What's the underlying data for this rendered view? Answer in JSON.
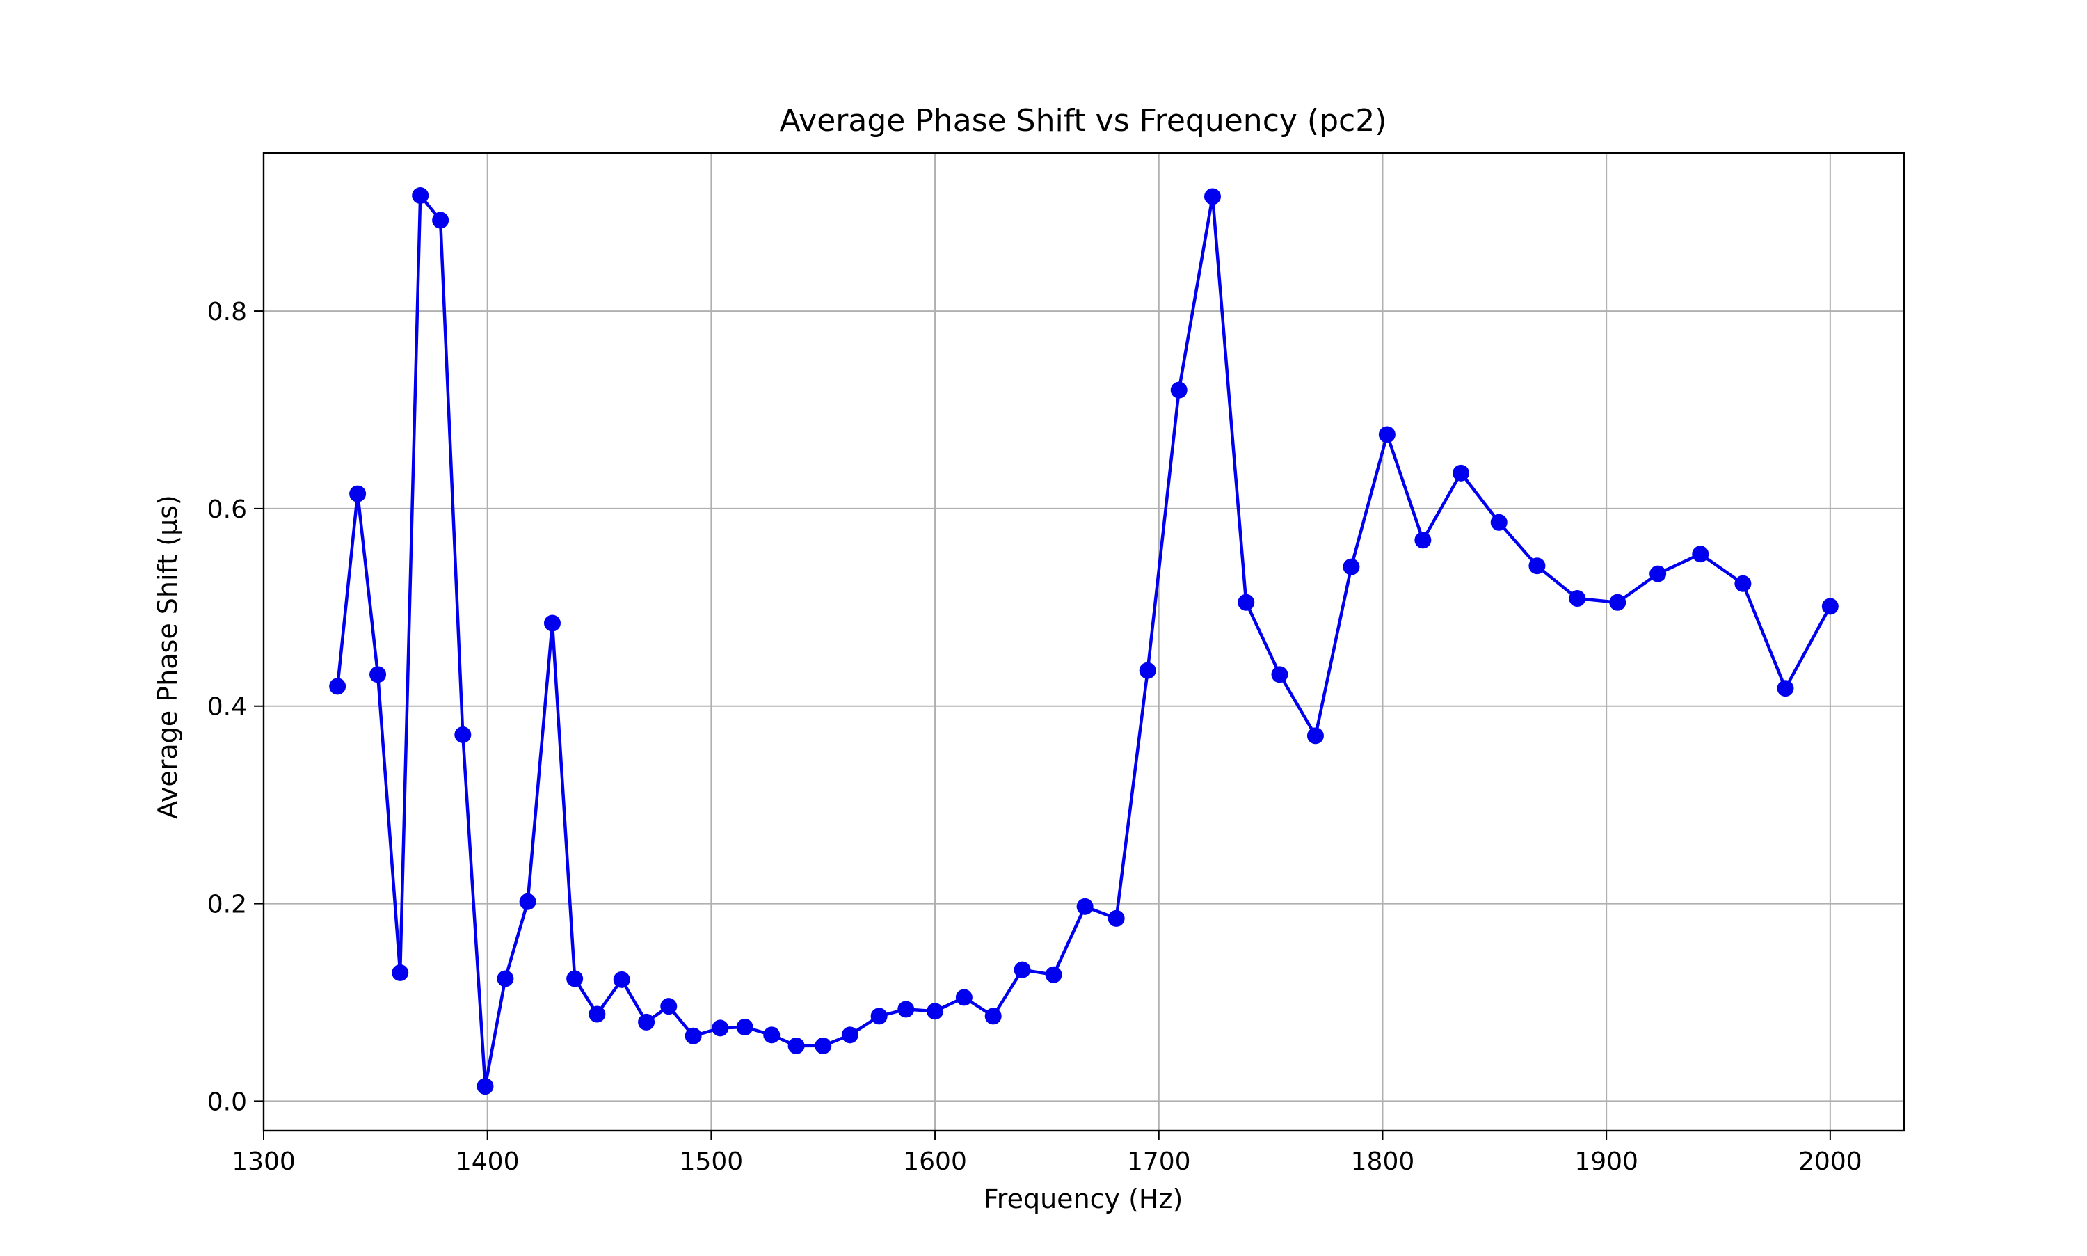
{
  "chart_data": {
    "type": "line",
    "title": "Average Phase Shift vs Frequency (pc2)",
    "xlabel": "Frequency (Hz)",
    "ylabel": "Average Phase Shift (µs)",
    "xlim": [
      1300,
      2033
    ],
    "ylim": [
      -0.03,
      0.96
    ],
    "xticks": [
      1300,
      1400,
      1500,
      1600,
      1700,
      1800,
      1900,
      2000
    ],
    "xtick_labels": [
      "1300",
      "1400",
      "1500",
      "1600",
      "1700",
      "1800",
      "1900",
      "2000"
    ],
    "yticks": [
      0.0,
      0.2,
      0.4,
      0.6,
      0.8
    ],
    "ytick_labels": [
      "0.0",
      "0.2",
      "0.4",
      "0.6",
      "0.8"
    ],
    "grid": true,
    "line_color": "#0000ee",
    "series": [
      {
        "x": [
          1333,
          1342,
          1351,
          1361,
          1370,
          1379,
          1389,
          1399,
          1408,
          1418,
          1429,
          1439,
          1449,
          1460,
          1471,
          1481,
          1492,
          1504,
          1515,
          1527,
          1538,
          1550,
          1562,
          1575,
          1587,
          1600,
          1613,
          1626,
          1639,
          1653,
          1667,
          1681,
          1695,
          1709,
          1724,
          1739,
          1754,
          1770,
          1786,
          1802,
          1818,
          1835,
          1852,
          1869,
          1887,
          1905,
          1923,
          1942,
          1961,
          1980,
          2000
        ],
        "values": [
          0.42,
          0.615,
          0.432,
          0.13,
          0.917,
          0.892,
          0.371,
          0.015,
          0.124,
          0.202,
          0.484,
          0.124,
          0.088,
          0.123,
          0.08,
          0.096,
          0.066,
          0.074,
          0.075,
          0.067,
          0.056,
          0.056,
          0.067,
          0.086,
          0.093,
          0.091,
          0.105,
          0.086,
          0.133,
          0.128,
          0.197,
          0.185,
          0.436,
          0.72,
          0.916,
          0.505,
          0.432,
          0.37,
          0.541,
          0.675,
          0.568,
          0.636,
          0.586,
          0.542,
          0.509,
          0.505,
          0.534,
          0.554,
          0.524,
          0.418,
          0.501
        ]
      }
    ]
  }
}
